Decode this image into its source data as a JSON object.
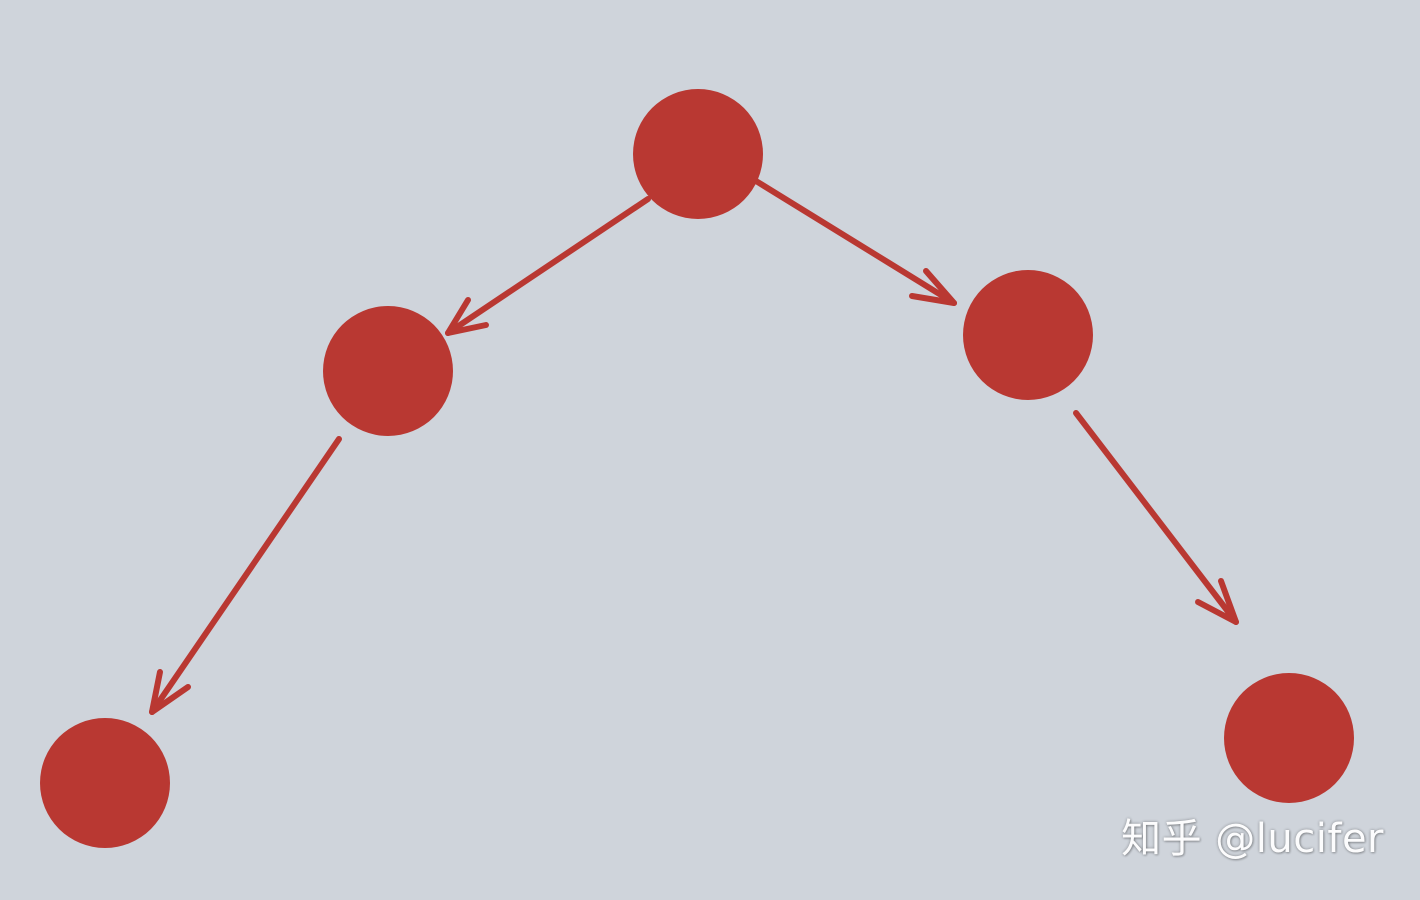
{
  "colors": {
    "background": "#cfd4db",
    "node_fill": "#b93832",
    "edge_stroke": "#b93832",
    "watermark": "#ffffff"
  },
  "nodes": [
    {
      "id": "root"
    },
    {
      "id": "left-child"
    },
    {
      "id": "right-child"
    },
    {
      "id": "left-left-grandchild"
    },
    {
      "id": "right-right-grandchild"
    }
  ],
  "edges": [
    {
      "from": "root",
      "to": "left-child"
    },
    {
      "from": "root",
      "to": "right-child"
    },
    {
      "from": "left-child",
      "to": "left-left-grandchild"
    },
    {
      "from": "right-child",
      "to": "right-right-grandchild"
    }
  ],
  "watermark": {
    "text": "知乎 @lucifer"
  }
}
